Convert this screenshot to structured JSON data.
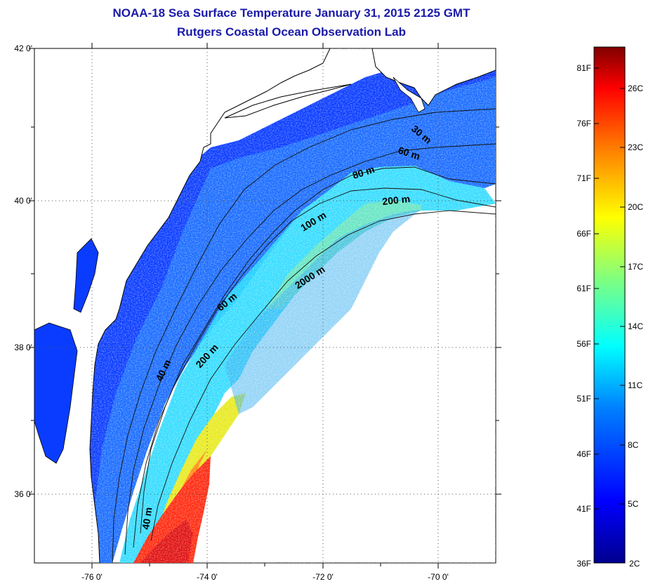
{
  "header": {
    "title": "NOAA-18 Sea Surface Temperature January 31, 2015 2125 GMT",
    "subtitle": "Rutgers Coastal Ocean Observation Lab"
  },
  "map": {
    "lat_labels": [
      "42 0'",
      "40 0'",
      "38 0'",
      "36 0'"
    ],
    "lon_labels": [
      "-76 0'",
      "-74 0'",
      "-72 0'",
      "-70 0'"
    ],
    "lat_range": [
      35,
      42
    ],
    "lon_range": [
      -77,
      -69.5
    ],
    "gridlines": "dotted",
    "isobath_labels": [
      "30 m",
      "60 m",
      "80 m",
      "200 m",
      "100 m",
      "2000 m",
      "60 m",
      "200 m",
      "40 m",
      "40 m"
    ],
    "land_color": "#ffffff",
    "cloud_mask_color": "#ffffff"
  },
  "colorbar": {
    "fahrenheit_labels": [
      "81F",
      "76F",
      "71F",
      "66F",
      "61F",
      "56F",
      "51F",
      "46F",
      "41F",
      "36F"
    ],
    "celsius_labels": [
      "26C",
      "23C",
      "20C",
      "17C",
      "14C",
      "11C",
      "8C",
      "5C",
      "2C"
    ],
    "colors": [
      "#00008f",
      "#0000ff",
      "#0080ff",
      "#00ffff",
      "#80ff80",
      "#ffff00",
      "#ff8000",
      "#ff0000",
      "#800000"
    ]
  }
}
